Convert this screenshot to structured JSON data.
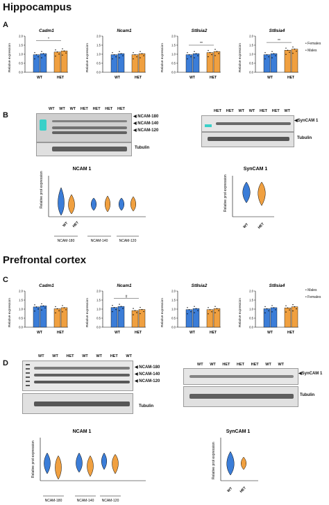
{
  "sections": {
    "hippocampus": "Hippocampus",
    "prefrontal": "Prefrontal cortex"
  },
  "panels": {
    "A": "A",
    "B": "B",
    "C": "C",
    "D": "D"
  },
  "legend_A": [
    "Females",
    "Males"
  ],
  "legend_C": [
    "Males",
    "Females"
  ],
  "colors": {
    "wt": "#3b7dd8",
    "het": "#f0a040",
    "blot_band": "#333333"
  },
  "bar_ylabel": "Relative expression",
  "violin_ylabel": "Relative prot expression",
  "groups": {
    "wt": "WT",
    "het": "HET"
  },
  "sig": {
    "star": "*",
    "dstar": "**",
    "hash": "#"
  },
  "blots": {
    "B_left_lanes": [
      "WT",
      "WT",
      "WT",
      "HET",
      "HET",
      "HET",
      "HET"
    ],
    "B_right_lanes": [
      "HET",
      "HET",
      "WT",
      "WT",
      "HET",
      "HET",
      "WT"
    ],
    "D_left_lanes": [
      "WT",
      "WT",
      "HET",
      "WT",
      "WT",
      "HET",
      "WT"
    ],
    "D_right_lanes": [
      "WT",
      "WT",
      "HET",
      "HET",
      "HET",
      "WT",
      "WT"
    ],
    "ncam_labels": [
      "NCAM-180",
      "NCAM-140",
      "NCAM-120"
    ],
    "syncam": "SynCAM 1",
    "tubulin": "Tubulin"
  },
  "violin_titles": {
    "ncam": "NCAM 1",
    "syncam": "SynCAM 1"
  },
  "ncam_groups": [
    "NCAM-180",
    "NCAM-140",
    "NCAM-120"
  ],
  "chart_data": [
    {
      "type": "bar",
      "title": "Cadm1",
      "categories": [
        "WT",
        "HET"
      ],
      "values": [
        1.0,
        1.15
      ],
      "ylim": [
        0,
        2.0
      ],
      "yticks": [
        "0.0",
        "0.5",
        "1.0",
        "1.5",
        "2.0"
      ]
    },
    {
      "type": "bar",
      "title": "Ncam1",
      "categories": [
        "WT",
        "HET"
      ],
      "values": [
        1.0,
        1.0
      ],
      "ylim": [
        0,
        2.0
      ],
      "yticks": [
        "0.0",
        "0.5",
        "1.0",
        "1.5",
        "2.0"
      ]
    },
    {
      "type": "bar",
      "title": "St8sia2",
      "categories": [
        "WT",
        "HET"
      ],
      "values": [
        1.0,
        1.12
      ],
      "ylim": [
        0,
        2.0
      ],
      "yticks": [
        "0.0",
        "0.5",
        "1.0",
        "1.5",
        "2.0"
      ]
    },
    {
      "type": "bar",
      "title": "St8sia4",
      "categories": [
        "WT",
        "HET"
      ],
      "values": [
        1.0,
        1.25
      ],
      "ylim": [
        0,
        2.0
      ],
      "yticks": [
        "0.0",
        "0.5",
        "1.0",
        "1.5",
        "2.0"
      ]
    },
    {
      "type": "bar",
      "title": "Cadm1",
      "categories": [
        "WT",
        "HET"
      ],
      "values": [
        1.15,
        1.05
      ],
      "ylim": [
        0,
        2.0
      ],
      "yticks": [
        "0.0",
        "0.5",
        "1.0",
        "1.5",
        "2.0"
      ]
    },
    {
      "type": "bar",
      "title": "Ncam1",
      "categories": [
        "WT",
        "HET"
      ],
      "values": [
        1.12,
        0.95
      ],
      "ylim": [
        0,
        2.0
      ],
      "yticks": [
        "0.0",
        "0.5",
        "1.0",
        "1.5",
        "2.0"
      ]
    },
    {
      "type": "bar",
      "title": "St8sia2",
      "categories": [
        "WT",
        "HET"
      ],
      "values": [
        1.0,
        1.0
      ],
      "ylim": [
        0,
        2.0
      ],
      "yticks": [
        "0.0",
        "0.5",
        "1.0",
        "1.5",
        "2.0"
      ]
    },
    {
      "type": "bar",
      "title": "St8sia4",
      "categories": [
        "WT",
        "HET"
      ],
      "values": [
        1.05,
        1.1
      ],
      "ylim": [
        0,
        2.0
      ],
      "yticks": [
        "0.0",
        "0.5",
        "1.0",
        "1.5",
        "2.0"
      ]
    }
  ]
}
